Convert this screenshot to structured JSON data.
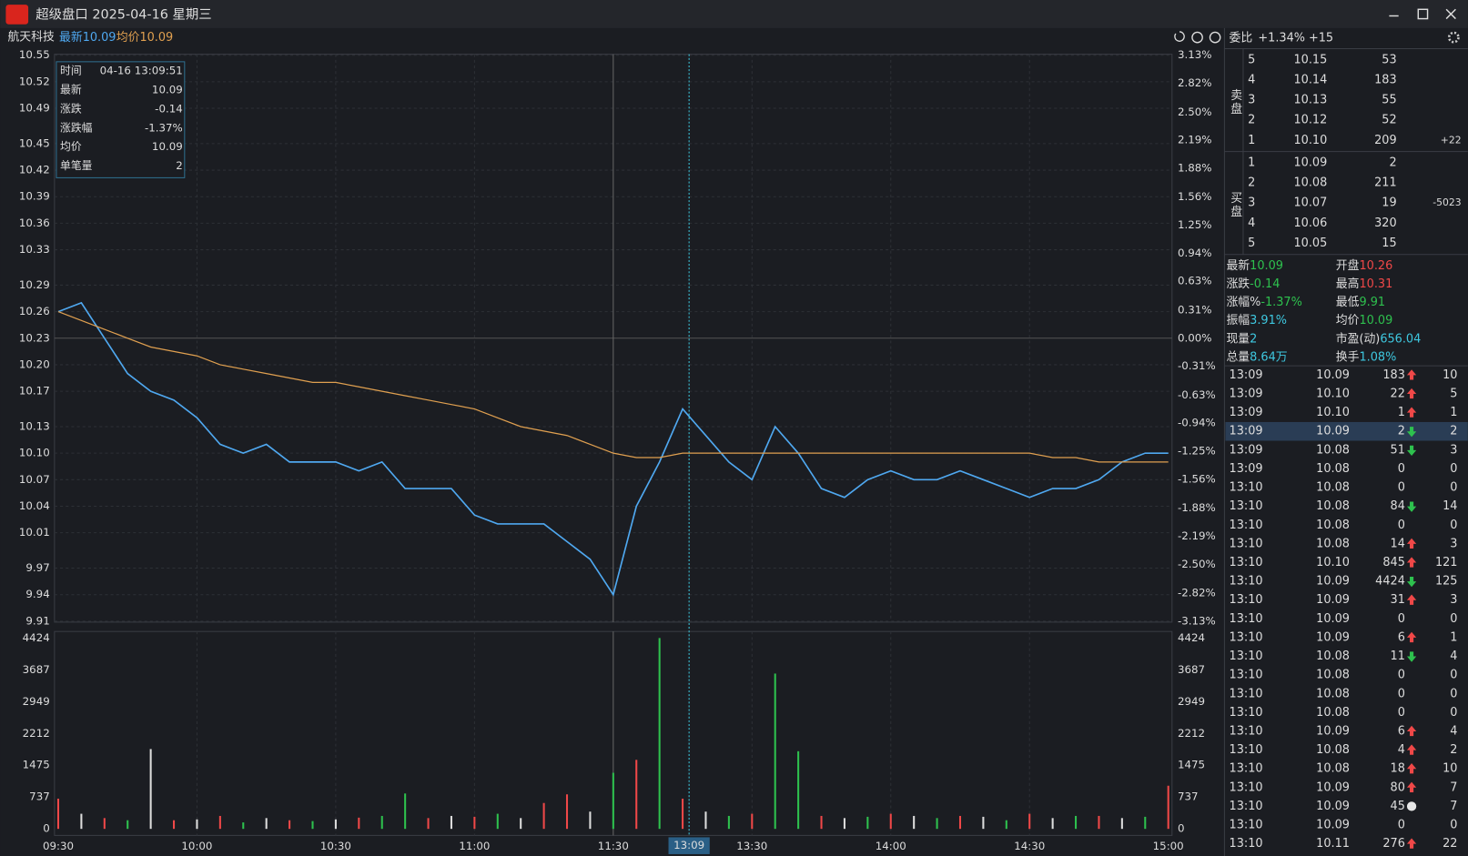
{
  "window": {
    "title": "超级盘口 2025-04-16 星期三"
  },
  "header": {
    "stock": "航天科技",
    "latest_value": "10.09",
    "avg_value": "10.09"
  },
  "chart_data": [
    {
      "type": "line",
      "categories": [
        "09:30",
        null,
        null,
        null,
        null,
        null,
        "10:00",
        null,
        null,
        null,
        null,
        null,
        "10:30",
        null,
        null,
        null,
        null,
        null,
        "11:00",
        null,
        null,
        null,
        null,
        null,
        "11:30",
        null,
        null,
        null,
        null,
        null,
        "13:30",
        null,
        null,
        null,
        null,
        null,
        "14:00",
        null,
        null,
        null,
        null,
        null,
        "14:30",
        null,
        null,
        null,
        null,
        null,
        "15:00"
      ],
      "series": [
        {
          "name": "最新",
          "color": "#4fa8f0",
          "values": [
            10.26,
            10.27,
            10.23,
            10.19,
            10.17,
            10.16,
            10.14,
            10.11,
            10.1,
            10.11,
            10.09,
            10.09,
            10.09,
            10.08,
            10.09,
            10.06,
            10.06,
            10.06,
            10.03,
            10.02,
            10.02,
            10.02,
            10.0,
            9.98,
            9.94,
            10.04,
            10.09,
            10.15,
            10.12,
            10.09,
            10.07,
            10.13,
            10.1,
            10.06,
            10.05,
            10.07,
            10.08,
            10.07,
            10.07,
            10.08,
            10.07,
            10.06,
            10.05,
            10.06,
            10.06,
            10.07,
            10.09,
            10.1,
            10.1
          ]
        },
        {
          "name": "均价",
          "color": "#e0a050",
          "values": [
            10.26,
            10.25,
            10.24,
            10.23,
            10.22,
            10.215,
            10.21,
            10.2,
            10.195,
            10.19,
            10.185,
            10.18,
            10.18,
            10.175,
            10.17,
            10.165,
            10.16,
            10.155,
            10.15,
            10.14,
            10.13,
            10.125,
            10.12,
            10.11,
            10.1,
            10.095,
            10.095,
            10.1,
            10.1,
            10.1,
            10.1,
            10.1,
            10.1,
            10.1,
            10.1,
            10.1,
            10.1,
            10.1,
            10.1,
            10.1,
            10.1,
            10.1,
            10.1,
            10.095,
            10.095,
            10.09,
            10.09,
            10.09,
            10.09
          ]
        }
      ],
      "ylim": [
        9.91,
        10.55
      ],
      "yticks": [
        {
          "value": 10.55,
          "label": "10.55"
        },
        {
          "value": 10.52,
          "label": "10.52"
        },
        {
          "value": 10.49,
          "label": "10.49"
        },
        {
          "value": 10.45,
          "label": "10.45"
        },
        {
          "value": 10.42,
          "label": "10.42"
        },
        {
          "value": 10.39,
          "label": "10.39"
        },
        {
          "value": 10.36,
          "label": "10.36"
        },
        {
          "value": 10.33,
          "label": "10.33"
        },
        {
          "value": 10.29,
          "label": "10.29"
        },
        {
          "value": 10.26,
          "label": "10.26"
        },
        {
          "value": 10.23,
          "label": "10.23"
        },
        {
          "value": 10.2,
          "label": "10.20"
        },
        {
          "value": 10.17,
          "label": "10.17"
        },
        {
          "value": 10.13,
          "label": "10.13"
        },
        {
          "value": 10.1,
          "label": "10.10"
        },
        {
          "value": 10.07,
          "label": "10.07"
        },
        {
          "value": 10.04,
          "label": "10.04"
        },
        {
          "value": 10.01,
          "label": "10.01"
        },
        {
          "value": 9.97,
          "label": "9.97"
        },
        {
          "value": 9.94,
          "label": "9.94"
        },
        {
          "value": 9.91,
          "label": "9.91"
        }
      ],
      "y2lim": [
        -3.13,
        3.13
      ],
      "y2ticks": [
        {
          "value": 3.13,
          "label": "3.13%"
        },
        {
          "value": 2.82,
          "label": "2.82%"
        },
        {
          "value": 2.5,
          "label": "2.50%"
        },
        {
          "value": 2.19,
          "label": "2.19%"
        },
        {
          "value": 1.88,
          "label": "1.88%"
        },
        {
          "value": 1.56,
          "label": "1.56%"
        },
        {
          "value": 1.25,
          "label": "1.25%"
        },
        {
          "value": 0.94,
          "label": "0.94%"
        },
        {
          "value": 0.63,
          "label": "0.63%"
        },
        {
          "value": 0.31,
          "label": "0.31%"
        },
        {
          "value": 0,
          "label": "0.00%"
        },
        {
          "value": -0.31,
          "label": "-0.31%"
        },
        {
          "value": -0.63,
          "label": "-0.63%"
        },
        {
          "value": -0.94,
          "label": "-0.94%"
        },
        {
          "value": -1.25,
          "label": "-1.25%"
        },
        {
          "value": -1.56,
          "label": "-1.56%"
        },
        {
          "value": -1.88,
          "label": "-1.88%"
        },
        {
          "value": -2.19,
          "label": "-2.19%"
        },
        {
          "value": -2.5,
          "label": "-2.50%"
        },
        {
          "value": -2.82,
          "label": "-2.82%"
        },
        {
          "value": -3.13,
          "label": "-3.13%"
        }
      ],
      "cursor": "13:09",
      "grid": true
    },
    {
      "type": "bar",
      "categories": [
        "09:30",
        null,
        null,
        null,
        null,
        null,
        "10:00",
        null,
        null,
        null,
        null,
        null,
        "10:30",
        null,
        null,
        null,
        null,
        null,
        "11:00",
        null,
        null,
        null,
        null,
        null,
        "11:30",
        null,
        null,
        null,
        null,
        null,
        "13:30",
        null,
        null,
        null,
        null,
        null,
        "14:00",
        null,
        null,
        null,
        null,
        null,
        "14:30",
        null,
        null,
        null,
        null,
        null,
        "15:00"
      ],
      "values": [
        700,
        350,
        250,
        200,
        1850,
        200,
        220,
        300,
        150,
        250,
        200,
        180,
        220,
        260,
        300,
        820,
        250,
        300,
        280,
        350,
        250,
        600,
        800,
        400,
        1300,
        1600,
        4424,
        700,
        400,
        300,
        350,
        3600,
        1800,
        300,
        250,
        280,
        350,
        300,
        250,
        300,
        280,
        200,
        350,
        250,
        300,
        300,
        250,
        280,
        1000
      ],
      "colors": [
        "#f04848",
        "#dddddd",
        "#f04848",
        "#2ec14e",
        "#dddddd",
        "#f04848",
        "#dddddd",
        "#f04848",
        "#2ec14e",
        "#dddddd",
        "#f04848",
        "#2ec14e",
        "#dddddd",
        "#f04848",
        "#2ec14e",
        "#2ec14e",
        "#f04848",
        "#dddddd",
        "#f04848",
        "#2ec14e",
        "#dddddd",
        "#f04848",
        "#f04848",
        "#dddddd",
        "#2ec14e",
        "#f04848",
        "#2ec14e",
        "#f04848",
        "#dddddd",
        "#2ec14e",
        "#f04848",
        "#2ec14e",
        "#2ec14e",
        "#f04848",
        "#dddddd",
        "#2ec14e",
        "#f04848",
        "#dddddd",
        "#2ec14e",
        "#f04848",
        "#dddddd",
        "#2ec14e",
        "#f04848",
        "#dddddd",
        "#2ec14e",
        "#f04848",
        "#dddddd",
        "#2ec14e",
        "#f04848"
      ],
      "ylim": [
        0,
        4424
      ],
      "yticks": [
        0,
        737,
        1475,
        2212,
        2949,
        3687,
        4424
      ]
    }
  ],
  "tooltip": {
    "rows": [
      [
        "时间",
        "04-16 13:09:51"
      ],
      [
        "最新",
        "10.09"
      ],
      [
        "涨跌",
        "-0.14"
      ],
      [
        "涨跌幅",
        "-1.37%"
      ],
      [
        "均价",
        "10.09"
      ],
      [
        "单笔量",
        "2"
      ]
    ]
  },
  "order_book": {
    "ratio_label": "委比",
    "ratio": "+1.34%",
    "diff": "+15",
    "sell_label": "卖盘",
    "buy_label": "买盘",
    "sell": [
      [
        "5",
        "10.15",
        "53"
      ],
      [
        "4",
        "10.14",
        "183"
      ],
      [
        "3",
        "10.13",
        "55"
      ],
      [
        "2",
        "10.12",
        "52"
      ],
      [
        "1",
        "10.10",
        "209",
        "+22"
      ]
    ],
    "buy": [
      [
        "1",
        "10.09",
        "2"
      ],
      [
        "2",
        "10.08",
        "211"
      ],
      [
        "3",
        "10.07",
        "19",
        "-5023"
      ],
      [
        "4",
        "10.06",
        "320"
      ],
      [
        "5",
        "10.05",
        "15"
      ]
    ]
  },
  "quote": {
    "rows": [
      [
        "最新",
        "10.09",
        "开盘",
        "10.26"
      ],
      [
        "涨跌",
        "-0.14",
        "最高",
        "10.31"
      ],
      [
        "涨幅%",
        "-1.37%",
        "最低",
        "9.91"
      ],
      [
        "振幅",
        "3.91%",
        "均价",
        "10.09"
      ],
      [
        "现量",
        "2",
        "市盈(动)",
        "656.04"
      ],
      [
        "总量",
        "8.64万",
        "换手",
        "1.08%"
      ]
    ]
  },
  "trades": {
    "rows": [
      [
        "13:09",
        "10.09",
        "183",
        "up",
        "10"
      ],
      [
        "13:09",
        "10.10",
        "22",
        "up",
        "5"
      ],
      [
        "13:09",
        "10.10",
        "1",
        "up",
        "1"
      ],
      [
        "13:09",
        "10.09",
        "2",
        "down",
        "2"
      ],
      [
        "13:09",
        "10.08",
        "51",
        "down",
        "3"
      ],
      [
        "13:09",
        "10.08",
        "0",
        "none",
        "0"
      ],
      [
        "13:10",
        "10.08",
        "0",
        "none",
        "0"
      ],
      [
        "13:10",
        "10.08",
        "84",
        "down",
        "14"
      ],
      [
        "13:10",
        "10.08",
        "0",
        "none",
        "0"
      ],
      [
        "13:10",
        "10.08",
        "14",
        "up",
        "3"
      ],
      [
        "13:10",
        "10.10",
        "845",
        "up",
        "121"
      ],
      [
        "13:10",
        "10.09",
        "4424",
        "down",
        "125"
      ],
      [
        "13:10",
        "10.09",
        "31",
        "up",
        "3"
      ],
      [
        "13:10",
        "10.09",
        "0",
        "none",
        "0"
      ],
      [
        "13:10",
        "10.09",
        "6",
        "up",
        "1"
      ],
      [
        "13:10",
        "10.08",
        "11",
        "down",
        "4"
      ],
      [
        "13:10",
        "10.08",
        "0",
        "none",
        "0"
      ],
      [
        "13:10",
        "10.08",
        "0",
        "none",
        "0"
      ],
      [
        "13:10",
        "10.08",
        "0",
        "none",
        "0"
      ],
      [
        "13:10",
        "10.09",
        "6",
        "up",
        "4"
      ],
      [
        "13:10",
        "10.08",
        "4",
        "up",
        "2"
      ],
      [
        "13:10",
        "10.08",
        "18",
        "up",
        "10"
      ],
      [
        "13:10",
        "10.09",
        "80",
        "up",
        "7"
      ],
      [
        "13:10",
        "10.09",
        "45",
        "neutral",
        "7"
      ],
      [
        "13:10",
        "10.09",
        "0",
        "none",
        "0"
      ],
      [
        "13:10",
        "10.11",
        "276",
        "up",
        "22"
      ]
    ]
  }
}
